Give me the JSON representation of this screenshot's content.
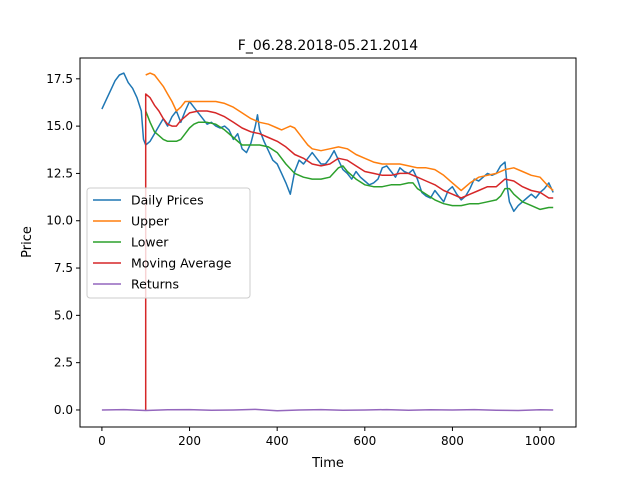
{
  "chart_data": {
    "type": "line",
    "title": "F_06.28.2018-05.21.2014",
    "xlabel": "Time",
    "ylabel": "Price",
    "xlim": [
      -50,
      1082
    ],
    "ylim": [
      -0.9,
      18.6
    ],
    "x_ticks": [
      0,
      200,
      400,
      600,
      800,
      1000
    ],
    "y_ticks": [
      0.0,
      2.5,
      5.0,
      7.5,
      10.0,
      12.5,
      15.0,
      17.5
    ],
    "x_tick_labels": [
      "0",
      "200",
      "400",
      "600",
      "800",
      "1000"
    ],
    "y_tick_labels": [
      "0.0",
      "2.5",
      "5.0",
      "7.5",
      "10.0",
      "12.5",
      "15.0",
      "17.5"
    ],
    "grid": false,
    "legend_position": "center-left",
    "series": [
      {
        "name": "Daily Prices",
        "color": "#1f77b4",
        "points": [
          [
            0,
            15.9
          ],
          [
            10,
            16.4
          ],
          [
            20,
            16.9
          ],
          [
            30,
            17.4
          ],
          [
            40,
            17.7
          ],
          [
            50,
            17.8
          ],
          [
            60,
            17.3
          ],
          [
            70,
            17.0
          ],
          [
            80,
            16.5
          ],
          [
            90,
            15.8
          ],
          [
            95,
            14.3
          ],
          [
            100,
            14.0
          ],
          [
            110,
            14.2
          ],
          [
            120,
            14.6
          ],
          [
            130,
            15.0
          ],
          [
            140,
            15.4
          ],
          [
            150,
            15.0
          ],
          [
            160,
            15.5
          ],
          [
            170,
            15.8
          ],
          [
            180,
            15.2
          ],
          [
            190,
            15.8
          ],
          [
            200,
            16.3
          ],
          [
            210,
            16.0
          ],
          [
            220,
            15.7
          ],
          [
            230,
            15.4
          ],
          [
            240,
            15.1
          ],
          [
            250,
            15.2
          ],
          [
            260,
            15.0
          ],
          [
            270,
            14.9
          ],
          [
            280,
            15.0
          ],
          [
            290,
            14.8
          ],
          [
            300,
            14.3
          ],
          [
            310,
            14.6
          ],
          [
            320,
            13.8
          ],
          [
            330,
            13.6
          ],
          [
            340,
            14.1
          ],
          [
            350,
            15.0
          ],
          [
            355,
            15.6
          ],
          [
            360,
            14.8
          ],
          [
            370,
            14.2
          ],
          [
            380,
            13.7
          ],
          [
            390,
            13.2
          ],
          [
            400,
            13.0
          ],
          [
            410,
            12.5
          ],
          [
            420,
            12.0
          ],
          [
            430,
            11.4
          ],
          [
            440,
            12.6
          ],
          [
            450,
            13.2
          ],
          [
            460,
            13.0
          ],
          [
            470,
            13.3
          ],
          [
            480,
            13.6
          ],
          [
            490,
            13.3
          ],
          [
            500,
            13.0
          ],
          [
            510,
            13.0
          ],
          [
            520,
            13.3
          ],
          [
            530,
            13.7
          ],
          [
            540,
            13.2
          ],
          [
            550,
            12.7
          ],
          [
            560,
            12.5
          ],
          [
            570,
            12.2
          ],
          [
            580,
            12.6
          ],
          [
            590,
            12.3
          ],
          [
            600,
            12.1
          ],
          [
            610,
            11.9
          ],
          [
            620,
            12.0
          ],
          [
            630,
            12.2
          ],
          [
            640,
            12.8
          ],
          [
            650,
            12.9
          ],
          [
            660,
            12.6
          ],
          [
            670,
            12.3
          ],
          [
            680,
            12.8
          ],
          [
            690,
            12.6
          ],
          [
            700,
            12.5
          ],
          [
            710,
            12.7
          ],
          [
            720,
            12.2
          ],
          [
            730,
            11.5
          ],
          [
            740,
            11.3
          ],
          [
            750,
            11.2
          ],
          [
            760,
            11.6
          ],
          [
            770,
            11.3
          ],
          [
            780,
            11.0
          ],
          [
            790,
            11.6
          ],
          [
            800,
            11.8
          ],
          [
            810,
            11.4
          ],
          [
            820,
            11.1
          ],
          [
            830,
            11.3
          ],
          [
            840,
            11.7
          ],
          [
            850,
            12.2
          ],
          [
            860,
            12.1
          ],
          [
            870,
            12.3
          ],
          [
            880,
            12.5
          ],
          [
            890,
            12.4
          ],
          [
            900,
            12.5
          ],
          [
            910,
            12.9
          ],
          [
            920,
            13.1
          ],
          [
            925,
            11.8
          ],
          [
            930,
            11.0
          ],
          [
            940,
            10.5
          ],
          [
            950,
            10.8
          ],
          [
            960,
            11.0
          ],
          [
            970,
            11.2
          ],
          [
            980,
            11.4
          ],
          [
            990,
            11.2
          ],
          [
            1000,
            11.5
          ],
          [
            1010,
            11.7
          ],
          [
            1020,
            12.0
          ],
          [
            1030,
            11.5
          ]
        ]
      },
      {
        "name": "Upper",
        "color": "#ff7f0e",
        "points": [
          [
            100,
            17.7
          ],
          [
            110,
            17.8
          ],
          [
            120,
            17.7
          ],
          [
            130,
            17.4
          ],
          [
            140,
            17.1
          ],
          [
            150,
            16.7
          ],
          [
            160,
            16.3
          ],
          [
            170,
            15.8
          ],
          [
            180,
            16.0
          ],
          [
            190,
            16.3
          ],
          [
            200,
            16.3
          ],
          [
            220,
            16.3
          ],
          [
            240,
            16.3
          ],
          [
            260,
            16.3
          ],
          [
            280,
            16.2
          ],
          [
            300,
            16.0
          ],
          [
            320,
            15.7
          ],
          [
            340,
            15.4
          ],
          [
            360,
            15.2
          ],
          [
            380,
            15.1
          ],
          [
            400,
            14.9
          ],
          [
            410,
            14.8
          ],
          [
            420,
            14.9
          ],
          [
            430,
            15.0
          ],
          [
            440,
            14.9
          ],
          [
            450,
            14.6
          ],
          [
            460,
            14.3
          ],
          [
            470,
            14.0
          ],
          [
            480,
            13.8
          ],
          [
            500,
            13.7
          ],
          [
            520,
            13.8
          ],
          [
            540,
            13.9
          ],
          [
            560,
            13.8
          ],
          [
            580,
            13.5
          ],
          [
            600,
            13.3
          ],
          [
            620,
            13.1
          ],
          [
            640,
            13.0
          ],
          [
            660,
            13.0
          ],
          [
            680,
            13.0
          ],
          [
            700,
            12.9
          ],
          [
            720,
            12.8
          ],
          [
            740,
            12.8
          ],
          [
            760,
            12.7
          ],
          [
            780,
            12.4
          ],
          [
            800,
            12.0
          ],
          [
            820,
            11.6
          ],
          [
            840,
            12.0
          ],
          [
            860,
            12.3
          ],
          [
            880,
            12.4
          ],
          [
            900,
            12.5
          ],
          [
            920,
            12.7
          ],
          [
            940,
            12.8
          ],
          [
            960,
            12.6
          ],
          [
            980,
            12.4
          ],
          [
            1000,
            12.3
          ],
          [
            1020,
            11.8
          ],
          [
            1030,
            11.6
          ]
        ]
      },
      {
        "name": "Lower",
        "color": "#2ca02c",
        "points": [
          [
            100,
            15.8
          ],
          [
            110,
            15.2
          ],
          [
            120,
            14.7
          ],
          [
            130,
            14.5
          ],
          [
            140,
            14.3
          ],
          [
            150,
            14.2
          ],
          [
            160,
            14.2
          ],
          [
            170,
            14.2
          ],
          [
            180,
            14.3
          ],
          [
            190,
            14.6
          ],
          [
            200,
            14.9
          ],
          [
            210,
            15.1
          ],
          [
            220,
            15.2
          ],
          [
            240,
            15.2
          ],
          [
            260,
            15.1
          ],
          [
            280,
            14.8
          ],
          [
            300,
            14.4
          ],
          [
            320,
            14.0
          ],
          [
            340,
            14.0
          ],
          [
            360,
            14.0
          ],
          [
            380,
            13.9
          ],
          [
            400,
            13.6
          ],
          [
            420,
            13.0
          ],
          [
            440,
            12.5
          ],
          [
            460,
            12.3
          ],
          [
            480,
            12.2
          ],
          [
            500,
            12.2
          ],
          [
            520,
            12.3
          ],
          [
            540,
            12.8
          ],
          [
            550,
            12.9
          ],
          [
            560,
            12.6
          ],
          [
            580,
            12.2
          ],
          [
            600,
            11.9
          ],
          [
            620,
            11.8
          ],
          [
            640,
            11.8
          ],
          [
            660,
            11.9
          ],
          [
            680,
            11.9
          ],
          [
            700,
            12.0
          ],
          [
            710,
            12.0
          ],
          [
            720,
            11.7
          ],
          [
            740,
            11.4
          ],
          [
            760,
            11.1
          ],
          [
            780,
            10.9
          ],
          [
            800,
            10.8
          ],
          [
            820,
            10.8
          ],
          [
            840,
            10.9
          ],
          [
            860,
            10.9
          ],
          [
            880,
            11.0
          ],
          [
            900,
            11.1
          ],
          [
            910,
            11.3
          ],
          [
            920,
            11.7
          ],
          [
            930,
            11.7
          ],
          [
            940,
            11.4
          ],
          [
            960,
            11.0
          ],
          [
            980,
            10.8
          ],
          [
            1000,
            10.6
          ],
          [
            1020,
            10.7
          ],
          [
            1030,
            10.7
          ]
        ]
      },
      {
        "name": "Moving Average",
        "color": "#d62728",
        "points": [
          [
            100,
            0.0
          ],
          [
            100,
            16.7
          ],
          [
            110,
            16.5
          ],
          [
            120,
            16.1
          ],
          [
            130,
            15.8
          ],
          [
            140,
            15.4
          ],
          [
            150,
            15.1
          ],
          [
            160,
            15.0
          ],
          [
            170,
            15.0
          ],
          [
            180,
            15.3
          ],
          [
            190,
            15.5
          ],
          [
            200,
            15.7
          ],
          [
            220,
            15.8
          ],
          [
            240,
            15.8
          ],
          [
            260,
            15.7
          ],
          [
            280,
            15.5
          ],
          [
            300,
            15.2
          ],
          [
            320,
            14.9
          ],
          [
            340,
            14.7
          ],
          [
            360,
            14.6
          ],
          [
            380,
            14.4
          ],
          [
            400,
            14.2
          ],
          [
            420,
            13.9
          ],
          [
            440,
            13.5
          ],
          [
            460,
            13.3
          ],
          [
            480,
            13.0
          ],
          [
            500,
            12.9
          ],
          [
            520,
            13.0
          ],
          [
            540,
            13.3
          ],
          [
            560,
            13.2
          ],
          [
            580,
            12.9
          ],
          [
            600,
            12.6
          ],
          [
            620,
            12.5
          ],
          [
            640,
            12.4
          ],
          [
            660,
            12.4
          ],
          [
            680,
            12.5
          ],
          [
            700,
            12.5
          ],
          [
            720,
            12.3
          ],
          [
            740,
            12.1
          ],
          [
            760,
            11.9
          ],
          [
            780,
            11.6
          ],
          [
            800,
            11.4
          ],
          [
            820,
            11.2
          ],
          [
            840,
            11.4
          ],
          [
            860,
            11.6
          ],
          [
            880,
            11.8
          ],
          [
            900,
            11.8
          ],
          [
            920,
            12.2
          ],
          [
            940,
            12.1
          ],
          [
            960,
            11.8
          ],
          [
            980,
            11.6
          ],
          [
            1000,
            11.5
          ],
          [
            1020,
            11.2
          ],
          [
            1030,
            11.2
          ]
        ]
      },
      {
        "name": "Returns",
        "color": "#9467bd",
        "points": [
          [
            0,
            0.0
          ],
          [
            50,
            0.02
          ],
          [
            100,
            -0.03
          ],
          [
            150,
            0.01
          ],
          [
            200,
            0.02
          ],
          [
            250,
            -0.01
          ],
          [
            300,
            0.0
          ],
          [
            350,
            0.03
          ],
          [
            400,
            -0.04
          ],
          [
            450,
            0.0
          ],
          [
            500,
            0.02
          ],
          [
            550,
            -0.01
          ],
          [
            600,
            0.0
          ],
          [
            650,
            0.02
          ],
          [
            700,
            -0.02
          ],
          [
            750,
            0.01
          ],
          [
            800,
            0.0
          ],
          [
            850,
            0.02
          ],
          [
            900,
            -0.01
          ],
          [
            950,
            -0.03
          ],
          [
            1000,
            0.01
          ],
          [
            1030,
            0.0
          ]
        ]
      }
    ]
  }
}
